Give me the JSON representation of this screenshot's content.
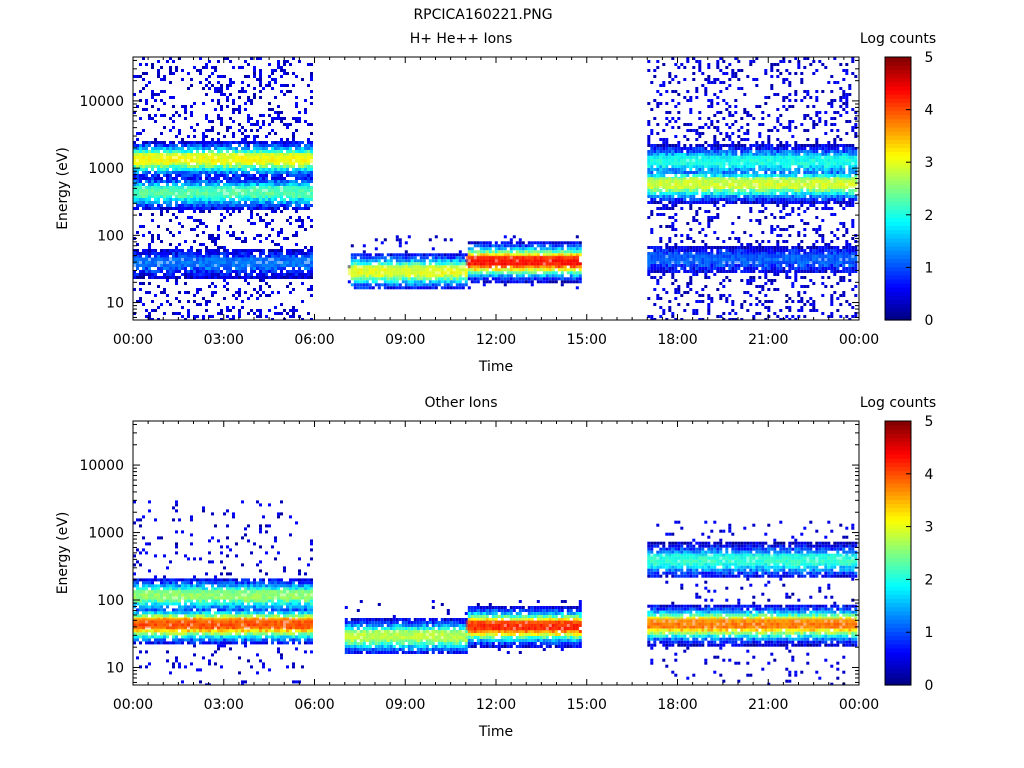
{
  "figure_title": "RPCICA160221.PNG",
  "chart_data": [
    {
      "type": "heatmap",
      "title": "H+ He++ Ions",
      "xlabel": "Time",
      "ylabel": "Energy (eV)",
      "x_ticks": [
        "00:00",
        "03:00",
        "06:00",
        "09:00",
        "12:00",
        "15:00",
        "18:00",
        "21:00",
        "00:00"
      ],
      "x_range_hours": [
        0,
        24
      ],
      "y_scale": "log",
      "y_range": [
        5.5,
        45000
      ],
      "y_ticks": [
        {
          "value": 10,
          "label": "10"
        },
        {
          "value": 100,
          "label": "100"
        },
        {
          "value": 1000,
          "label": "1000"
        },
        {
          "value": 10000,
          "label": "10000"
        }
      ],
      "colorbar": {
        "label": "Log counts",
        "range": [
          0,
          5
        ],
        "ticks": [
          "0",
          "1",
          "2",
          "3",
          "4",
          "5"
        ],
        "colormap": "jet"
      },
      "data_segments": [
        {
          "start_h": 0.0,
          "end_h": 5.95,
          "emin": 5.5,
          "emax": 45000
        },
        {
          "start_h": 7.1,
          "end_h": 14.75,
          "emin": 17,
          "emax": 100
        },
        {
          "start_h": 17.0,
          "end_h": 23.9,
          "emin": 5.5,
          "emax": 45000
        }
      ],
      "features": [
        {
          "start_h": 0.0,
          "end_h": 5.95,
          "energy": 1400,
          "level": 3.1,
          "note": "band"
        },
        {
          "start_h": 0.0,
          "end_h": 5.95,
          "energy": 450,
          "level": 2.3,
          "note": "band"
        },
        {
          "start_h": 0.0,
          "end_h": 5.95,
          "energy": 40,
          "level": 1.2,
          "note": "band"
        },
        {
          "start_h": 7.1,
          "end_h": 11.0,
          "energy": 30,
          "level": 3.0,
          "note": "band"
        },
        {
          "start_h": 11.0,
          "end_h": 14.75,
          "energy": 42,
          "level": 4.3,
          "note": "band"
        },
        {
          "start_h": 17.0,
          "end_h": 23.9,
          "energy": 1300,
          "level": 2.0,
          "note": "band"
        },
        {
          "start_h": 17.0,
          "end_h": 23.9,
          "energy": 600,
          "level": 2.9,
          "note": "band"
        },
        {
          "start_h": 17.0,
          "end_h": 23.9,
          "energy": 45,
          "level": 1.1,
          "note": "band"
        }
      ]
    },
    {
      "type": "heatmap",
      "title": "Other Ions",
      "xlabel": "Time",
      "ylabel": "Energy (eV)",
      "x_ticks": [
        "00:00",
        "03:00",
        "06:00",
        "09:00",
        "12:00",
        "15:00",
        "18:00",
        "21:00",
        "00:00"
      ],
      "x_range_hours": [
        0,
        24
      ],
      "y_scale": "log",
      "y_range": [
        5.5,
        45000
      ],
      "y_ticks": [
        {
          "value": 10,
          "label": "10"
        },
        {
          "value": 100,
          "label": "100"
        },
        {
          "value": 1000,
          "label": "1000"
        },
        {
          "value": 10000,
          "label": "10000"
        }
      ],
      "colorbar": {
        "label": "Log counts",
        "range": [
          0,
          5
        ],
        "ticks": [
          "0",
          "1",
          "2",
          "3",
          "4",
          "5"
        ],
        "colormap": "jet"
      },
      "data_segments": [
        {
          "start_h": 0.0,
          "end_h": 5.95,
          "emin": 5.5,
          "emax": 3000
        },
        {
          "start_h": 7.0,
          "end_h": 14.75,
          "emin": 17,
          "emax": 100
        },
        {
          "start_h": 17.0,
          "end_h": 23.9,
          "emin": 5.5,
          "emax": 1500
        }
      ],
      "features": [
        {
          "start_h": 0.0,
          "end_h": 5.95,
          "energy": 45,
          "level": 4.0,
          "note": "band"
        },
        {
          "start_h": 0.0,
          "end_h": 5.95,
          "energy": 120,
          "level": 2.6,
          "note": "band"
        },
        {
          "start_h": 7.0,
          "end_h": 11.0,
          "energy": 30,
          "level": 2.8,
          "note": "band"
        },
        {
          "start_h": 11.0,
          "end_h": 14.75,
          "energy": 42,
          "level": 4.2,
          "note": "band"
        },
        {
          "start_h": 17.0,
          "end_h": 23.9,
          "energy": 45,
          "level": 3.8,
          "note": "band"
        },
        {
          "start_h": 17.0,
          "end_h": 23.9,
          "energy": 400,
          "level": 2.1,
          "note": "band"
        }
      ]
    }
  ]
}
